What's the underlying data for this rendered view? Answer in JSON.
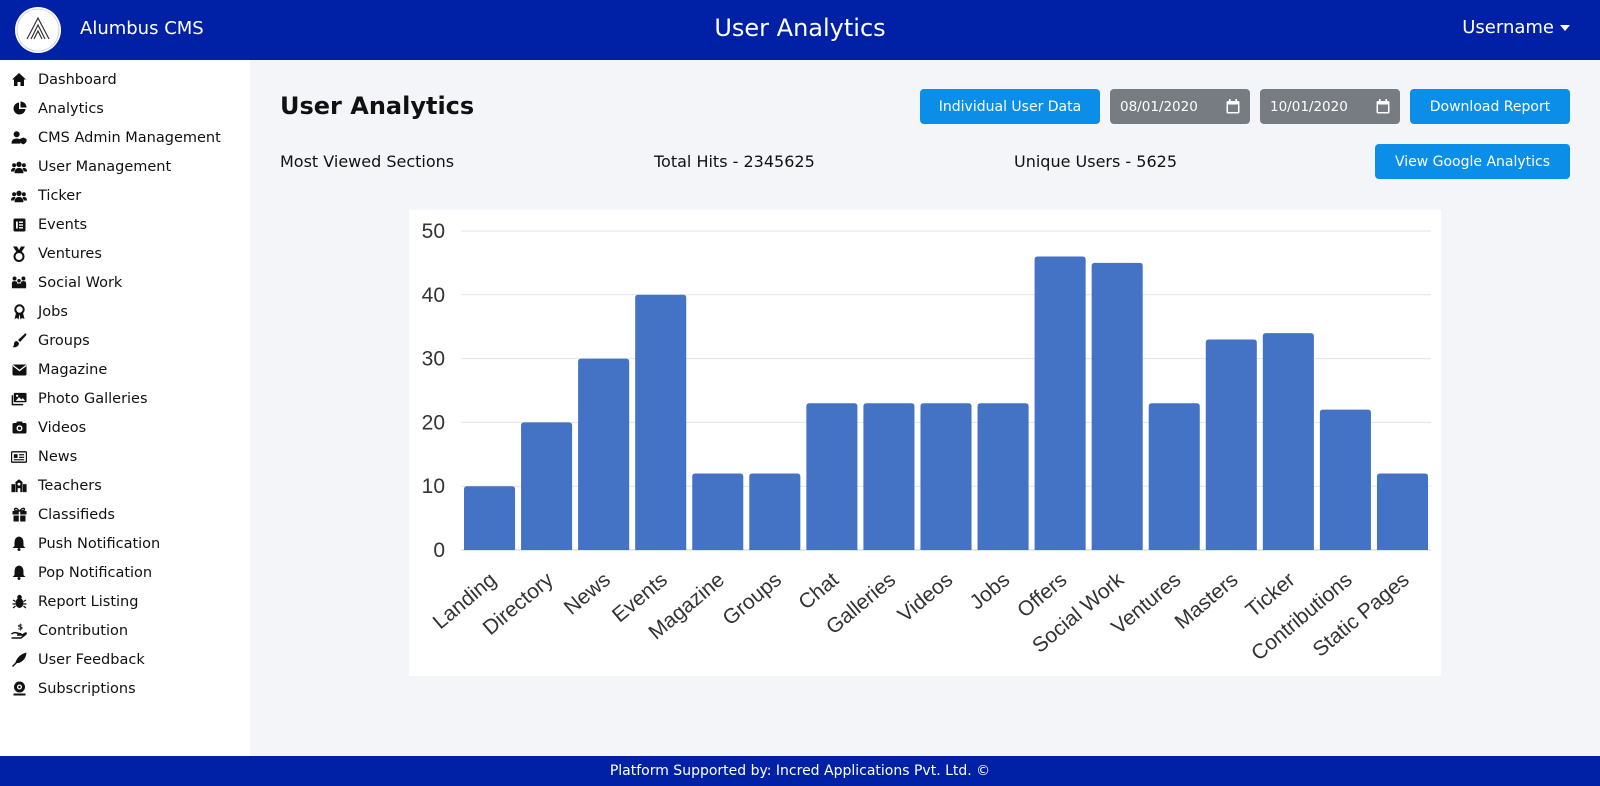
{
  "header": {
    "brand": "Alumbus CMS",
    "title": "User Analytics",
    "user": "Username"
  },
  "sidebar": {
    "items": [
      {
        "label": "Dashboard",
        "icon": "home-icon"
      },
      {
        "label": "Analytics",
        "icon": "pie-chart-icon"
      },
      {
        "label": "CMS Admin Management",
        "icon": "user-shield-icon"
      },
      {
        "label": "User Management",
        "icon": "users-icon"
      },
      {
        "label": "Ticker",
        "icon": "users-icon"
      },
      {
        "label": "Events",
        "icon": "calendar-list-icon"
      },
      {
        "label": "Ventures",
        "icon": "medal-icon"
      },
      {
        "label": "Social Work",
        "icon": "people-group-icon"
      },
      {
        "label": "Jobs",
        "icon": "award-icon"
      },
      {
        "label": "Groups",
        "icon": "brush-icon"
      },
      {
        "label": "Magazine",
        "icon": "envelope-icon"
      },
      {
        "label": "Photo Galleries",
        "icon": "images-icon"
      },
      {
        "label": "Videos",
        "icon": "camera-icon"
      },
      {
        "label": "News",
        "icon": "newspaper-icon"
      },
      {
        "label": "Teachers",
        "icon": "school-icon"
      },
      {
        "label": "Classifieds",
        "icon": "gift-icon"
      },
      {
        "label": "Push Notification",
        "icon": "bell-icon"
      },
      {
        "label": "Pop Notification",
        "icon": "bell-icon"
      },
      {
        "label": "Report Listing",
        "icon": "bug-icon"
      },
      {
        "label": "Contribution",
        "icon": "hand-dollar-icon"
      },
      {
        "label": "User Feedback",
        "icon": "feather-icon"
      },
      {
        "label": "Subscriptions",
        "icon": "subscription-icon"
      }
    ]
  },
  "main": {
    "title": "User Analytics",
    "individual_user_button": "Individual User Data",
    "start_date": "08/01/2020",
    "end_date": "10/01/2020",
    "download_button": "Download Report",
    "most_viewed": "Most Viewed Sections",
    "total_hits": "Total Hits - 2345625",
    "unique_users": "Unique Users - 5625",
    "google_analytics_button": "View Google Analytics"
  },
  "footer": {
    "text": "Platform Supported by: Incred Applications Pvt. Ltd. ©"
  },
  "colors": {
    "header": "#0021a5",
    "accent": "#0b8ee8",
    "bar": "#4472c4",
    "date_bg": "#777b82"
  },
  "chart_data": {
    "type": "bar",
    "categories": [
      "Landing",
      "Directory",
      "News",
      "Events",
      "Magazine",
      "Groups",
      "Chat",
      "Galleries",
      "Videos",
      "Jobs",
      "Offers",
      "Social Work",
      "Ventures",
      "Masters",
      "Ticker",
      "Contributions",
      "Static Pages"
    ],
    "values": [
      10,
      20,
      30,
      40,
      12,
      12,
      23,
      23,
      23,
      23,
      46,
      45,
      23,
      33,
      34,
      22,
      12
    ],
    "ylim": [
      0,
      50
    ],
    "yticks": [
      0,
      10,
      20,
      30,
      40,
      50
    ],
    "grid": true
  }
}
